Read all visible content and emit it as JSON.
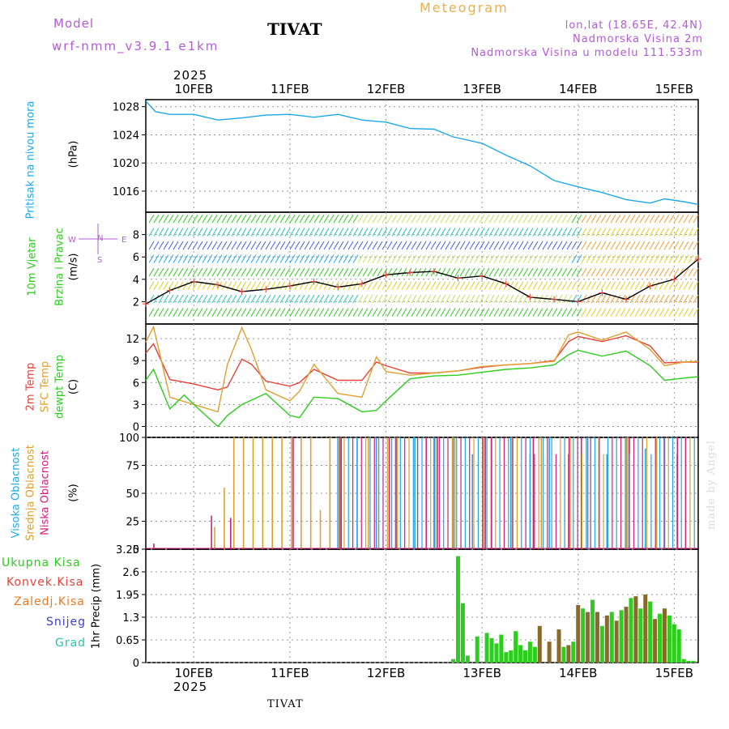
{
  "header": {
    "model_label": "Model",
    "model_run": "wrf-nmm_v3.9.1 e1km",
    "station": "TIVAT",
    "meteogram": "Meteogram",
    "lonlat": "lon,lat (18.65E, 42.4N)",
    "elevation": "Nadmorska Visina 2m",
    "model_elevation": "Nadmorska Visina u modelu 111.533m"
  },
  "footer": {
    "station": "TIVAT",
    "credit": "made by Angel"
  },
  "colors": {
    "pressure": "#1fa8e8",
    "temp2m": "#e8423a",
    "sfc": "#e0a030",
    "dew": "#2ecc1e",
    "high": "#1fa8e8",
    "mid": "#e0a030",
    "low": "#d0207a",
    "total": "#2ecc1e",
    "conv": "#e8423a",
    "frozen": "#f07820",
    "snow": "#4040d0",
    "hail": "#20c8b0"
  },
  "chart_data": [
    {
      "type": "line",
      "title": "Pritisak na nivou mora",
      "ylabel": "(hPa)",
      "ylim": [
        1013,
        1029
      ],
      "yticks": [
        1016,
        1020,
        1024,
        1028
      ],
      "x_top_year": "2025",
      "x_ticks": [
        "10FEB",
        "11FEB",
        "12FEB",
        "13FEB",
        "14FEB",
        "15FEB"
      ],
      "grid": true,
      "series": [
        {
          "name": "Pritisak na nivou mora",
          "x": [
            0,
            0.1,
            0.25,
            0.5,
            0.75,
            1.0,
            1.25,
            1.5,
            1.75,
            2.0,
            2.25,
            2.5,
            2.75,
            3.0,
            3.2,
            3.5,
            3.75,
            4.0,
            4.25,
            4.5,
            4.75,
            5.0,
            5.25,
            5.4,
            5.6,
            5.75
          ],
          "values": [
            1028.8,
            1027.3,
            1026.9,
            1026.9,
            1026.1,
            1026.4,
            1026.8,
            1026.9,
            1026.5,
            1026.9,
            1026.1,
            1025.8,
            1024.9,
            1024.8,
            1023.7,
            1022.8,
            1021.1,
            1019.6,
            1017.5,
            1016.6,
            1015.8,
            1014.8,
            1014.3,
            1014.9,
            1014.5,
            1014.1
          ]
        }
      ]
    },
    {
      "type": "line",
      "title": "10m Vjetar Brzina i Pravac",
      "ylabel": "(m/s)",
      "ylim": [
        0,
        10
      ],
      "yticks": [
        2,
        4,
        6,
        8
      ],
      "compass": {
        "n": "N",
        "s": "S",
        "e": "E",
        "w": "W"
      },
      "series": [
        {
          "name": "10m Vjetar",
          "x": [
            0,
            0.25,
            0.5,
            0.75,
            1.0,
            1.25,
            1.5,
            1.75,
            2.0,
            2.25,
            2.5,
            2.75,
            3.0,
            3.25,
            3.5,
            3.75,
            4.0,
            4.25,
            4.5,
            4.75,
            5.0,
            5.25,
            5.5,
            5.75
          ],
          "values": [
            1.8,
            3.0,
            3.8,
            3.5,
            2.9,
            3.1,
            3.4,
            3.8,
            3.3,
            3.6,
            4.4,
            4.6,
            4.7,
            4.1,
            4.3,
            3.6,
            2.4,
            2.2,
            2.0,
            2.8,
            2.2,
            3.4,
            4.0,
            5.8
          ]
        }
      ]
    },
    {
      "type": "line",
      "ylabel": "(C)",
      "ylim": [
        -1.5,
        14
      ],
      "yticks": [
        0,
        3,
        6,
        9,
        12
      ],
      "series": [
        {
          "name": "2m Temp",
          "x": [
            0,
            0.08,
            0.25,
            0.5,
            0.75,
            0.85,
            1.0,
            1.1,
            1.25,
            1.5,
            1.6,
            1.75,
            2.0,
            2.25,
            2.4,
            2.5,
            2.75,
            3.0,
            3.25,
            3.5,
            3.75,
            4.0,
            4.25,
            4.4,
            4.5,
            4.75,
            5.0,
            5.25,
            5.4,
            5.6,
            5.75
          ],
          "values": [
            10.0,
            11.3,
            6.4,
            5.8,
            5.0,
            5.4,
            9.2,
            8.5,
            6.2,
            5.5,
            6.0,
            7.8,
            6.3,
            6.3,
            8.8,
            8.3,
            7.3,
            7.3,
            7.6,
            8.1,
            8.4,
            8.6,
            9.0,
            11.6,
            12.3,
            11.6,
            12.4,
            11.0,
            8.7,
            8.8,
            8.8
          ]
        },
        {
          "name": "SFC Temp",
          "x": [
            0,
            0.08,
            0.25,
            0.5,
            0.75,
            0.85,
            1.0,
            1.1,
            1.25,
            1.5,
            1.6,
            1.75,
            2.0,
            2.25,
            2.4,
            2.5,
            2.75,
            3.0,
            3.25,
            3.5,
            3.75,
            4.0,
            4.25,
            4.4,
            4.5,
            4.75,
            5.0,
            5.25,
            5.4,
            5.6,
            5.75
          ],
          "values": [
            11.5,
            13.6,
            4.0,
            3.0,
            2.0,
            8.5,
            13.5,
            10.5,
            5.0,
            3.5,
            4.8,
            8.5,
            4.5,
            4.0,
            9.5,
            7.5,
            7.0,
            7.3,
            7.6,
            8.2,
            8.4,
            8.6,
            8.9,
            12.5,
            12.9,
            11.8,
            12.9,
            10.5,
            8.3,
            8.8,
            8.9
          ]
        },
        {
          "name": "dewpt Temp",
          "x": [
            0,
            0.08,
            0.25,
            0.4,
            0.5,
            0.75,
            0.85,
            1.0,
            1.25,
            1.5,
            1.6,
            1.75,
            2.0,
            2.25,
            2.4,
            2.5,
            2.75,
            3.0,
            3.25,
            3.5,
            3.75,
            4.0,
            4.25,
            4.4,
            4.5,
            4.75,
            5.0,
            5.25,
            5.4,
            5.6,
            5.75
          ],
          "values": [
            6.3,
            7.8,
            2.4,
            4.3,
            3.0,
            0.0,
            1.5,
            3.0,
            4.5,
            1.5,
            1.2,
            4.0,
            3.8,
            2.0,
            2.2,
            3.5,
            6.5,
            6.9,
            7.0,
            7.4,
            7.8,
            8.0,
            8.4,
            9.8,
            10.4,
            9.6,
            10.3,
            8.3,
            6.3,
            6.6,
            6.8
          ]
        }
      ]
    },
    {
      "type": "bar",
      "ylabel": "(%)",
      "ylim": [
        0,
        100
      ],
      "yticks": [
        0,
        25,
        50,
        75,
        100
      ],
      "series": [
        {
          "name": "Visoka Oblacnost",
          "x": [
            2.0,
            2.2,
            2.4,
            2.6,
            2.8,
            3.0,
            3.2,
            3.4,
            3.6,
            3.8,
            4.0,
            4.2,
            4.4,
            4.6,
            4.8,
            5.0,
            5.2,
            5.4
          ],
          "values": [
            100,
            100,
            100,
            100,
            100,
            100,
            100,
            85,
            100,
            100,
            85,
            100,
            85,
            100,
            85,
            100,
            90,
            100
          ]
        },
        {
          "name": "Srednja Oblacnost",
          "x": [
            0.7,
            0.8,
            0.9,
            1.0,
            1.1,
            1.2,
            1.3,
            1.4,
            1.5,
            1.6,
            1.7,
            1.8,
            1.9,
            2.0,
            2.3,
            2.6,
            2.9,
            3.2,
            3.5,
            3.8,
            4.1,
            4.4,
            4.7,
            5.0,
            5.3,
            5.6
          ],
          "values": [
            20,
            55,
            100,
            100,
            100,
            100,
            100,
            100,
            100,
            100,
            100,
            35,
            100,
            100,
            100,
            100,
            100,
            100,
            100,
            100,
            100,
            100,
            100,
            100,
            100,
            100
          ]
        },
        {
          "name": "Niska Oblacnost",
          "x": [
            0.05,
            0.65,
            0.85,
            1.5,
            2.0,
            2.5,
            3.0,
            3.5,
            4.0,
            4.5,
            5.0,
            5.5
          ],
          "values": [
            5,
            30,
            28,
            100,
            100,
            100,
            100,
            100,
            100,
            100,
            100,
            100
          ]
        }
      ]
    },
    {
      "type": "bar",
      "ylabel": "1hr Precip (mm)",
      "ylim": [
        0,
        3.25
      ],
      "yticks": [
        0,
        0.65,
        1.3,
        1.95,
        2.6,
        3.25
      ],
      "x_ticks": [
        "10FEB",
        "11FEB",
        "12FEB",
        "13FEB",
        "14FEB",
        "15FEB"
      ],
      "x_bottom_year": "2025",
      "series": [
        {
          "name": "Ukupna Kisa",
          "x": [
            3.2,
            3.25,
            3.3,
            3.35,
            3.45,
            3.55,
            3.6,
            3.65,
            3.7,
            3.75,
            3.8,
            3.85,
            3.9,
            3.95,
            4.0,
            4.05,
            4.1,
            4.2,
            4.3,
            4.35,
            4.4,
            4.45,
            4.5,
            4.55,
            4.6,
            4.65,
            4.7,
            4.75,
            4.8,
            4.85,
            4.9,
            4.95,
            5.0,
            5.05,
            5.1,
            5.15,
            5.2,
            5.25,
            5.3,
            5.35,
            5.4,
            5.45,
            5.5,
            5.55,
            5.6,
            5.65,
            5.7
          ],
          "values": [
            0.1,
            3.05,
            1.7,
            0.2,
            0.75,
            0.85,
            0.7,
            0.55,
            0.8,
            0.3,
            0.35,
            0.9,
            0.5,
            0.35,
            0.6,
            0.45,
            1.05,
            0.6,
            0.95,
            0.45,
            0.5,
            0.6,
            1.65,
            1.55,
            1.45,
            1.8,
            1.45,
            1.05,
            1.35,
            1.45,
            1.2,
            1.5,
            1.6,
            1.85,
            1.9,
            1.55,
            1.95,
            1.75,
            1.25,
            1.4,
            1.55,
            1.35,
            1.1,
            0.95,
            0.1,
            0.05,
            0.05
          ]
        },
        {
          "name": "Konvek.Kisa",
          "x": [
            4.3,
            4.35,
            4.45,
            4.55,
            4.65,
            4.75,
            4.85,
            4.95,
            5.05,
            5.15,
            5.25,
            5.35
          ],
          "values": [
            0.0,
            0.0,
            0.0,
            0.0,
            0.0,
            0.0,
            0.0,
            0.0,
            0.0,
            0.0,
            0.0,
            0.0
          ]
        },
        {
          "name": "Zaledj.Kisa",
          "x": [],
          "values": []
        },
        {
          "name": "Snijeg",
          "x": [],
          "values": []
        },
        {
          "name": "Grad",
          "x": [],
          "values": []
        }
      ]
    }
  ],
  "panels_labels": {
    "p1": "Pritisak na nivou mora",
    "p1_unit": "(hPa)",
    "p2a": "10m Vjetar",
    "p2b": "Brzina i Pravac",
    "p2_unit": "(m/s)",
    "p3a": "2m Temp",
    "p3b": "SFC Temp",
    "p3c": "dewpt Temp",
    "p3_unit": "(C)",
    "p4a": "Visoka Oblacnost",
    "p4b": "Srednja Oblacnost",
    "p4c": "Niska Oblacnost",
    "p4_unit": "(%)",
    "p5_unit": "1hr Precip (mm)"
  },
  "precip_legend": [
    "Ukupna Kisa",
    "Konvek.Kisa",
    "Zaledj.Kisa",
    "Snijeg",
    "Grad"
  ]
}
